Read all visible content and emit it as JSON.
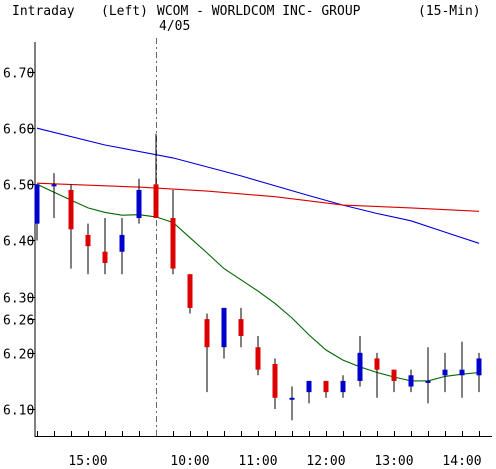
{
  "header": {
    "mode": "Intraday",
    "scale": "(Left)",
    "title": "WCOM - WORLDCOM INC- GROUP",
    "interval": "(15-Min)",
    "date_marker": "4/05"
  },
  "chart_data": {
    "type": "candlestick",
    "title": "WCOM - WORLDCOM INC- GROUP",
    "interval": "(15-Min)",
    "ylim": [
      6.065,
      6.8
    ],
    "y_ticks": [
      6.7,
      6.6,
      6.5,
      6.4,
      6.3,
      6.26,
      6.2,
      6.1
    ],
    "y_tick_labels": [
      "6.70",
      "6.60",
      "6.50",
      "6.40",
      "6.30",
      "6.26",
      "6.20",
      "6.10"
    ],
    "x_labels": [
      {
        "label": "15:00",
        "bar": 3
      },
      {
        "label": "10:00",
        "bar": 9
      },
      {
        "label": "11:00",
        "bar": 13
      },
      {
        "label": "12:00",
        "bar": 17
      },
      {
        "label": "13:00",
        "bar": 21
      },
      {
        "label": "14:00",
        "bar": 25
      }
    ],
    "session_divider_bar": 6.98,
    "date_label": "4/05",
    "candles": [
      {
        "o": 6.43,
        "h": 6.5,
        "l": 6.4,
        "c": 6.5
      },
      {
        "o": 6.5,
        "h": 6.52,
        "l": 6.44,
        "c": 6.5
      },
      {
        "o": 6.49,
        "h": 6.5,
        "l": 6.35,
        "c": 6.42
      },
      {
        "o": 6.41,
        "h": 6.43,
        "l": 6.34,
        "c": 6.39
      },
      {
        "o": 6.38,
        "h": 6.44,
        "l": 6.34,
        "c": 6.36
      },
      {
        "o": 6.38,
        "h": 6.44,
        "l": 6.34,
        "c": 6.41
      },
      {
        "o": 6.44,
        "h": 6.51,
        "l": 6.43,
        "c": 6.49
      },
      {
        "o": 6.5,
        "h": 6.59,
        "l": 6.44,
        "c": 6.44
      },
      {
        "o": 6.44,
        "h": 6.49,
        "l": 6.34,
        "c": 6.35
      },
      {
        "o": 6.34,
        "h": 6.34,
        "l": 6.27,
        "c": 6.28
      },
      {
        "o": 6.26,
        "h": 6.27,
        "l": 6.13,
        "c": 6.21
      },
      {
        "o": 6.21,
        "h": 6.28,
        "l": 6.19,
        "c": 6.28
      },
      {
        "o": 6.26,
        "h": 6.28,
        "l": 6.21,
        "c": 6.23
      },
      {
        "o": 6.21,
        "h": 6.23,
        "l": 6.16,
        "c": 6.17
      },
      {
        "o": 6.18,
        "h": 6.19,
        "l": 6.1,
        "c": 6.12
      },
      {
        "o": 6.12,
        "h": 6.14,
        "l": 6.08,
        "c": 6.12
      },
      {
        "o": 6.13,
        "h": 6.15,
        "l": 6.11,
        "c": 6.15
      },
      {
        "o": 6.15,
        "h": 6.15,
        "l": 6.12,
        "c": 6.13
      },
      {
        "o": 6.13,
        "h": 6.16,
        "l": 6.12,
        "c": 6.15
      },
      {
        "o": 6.15,
        "h": 6.23,
        "l": 6.14,
        "c": 6.2
      },
      {
        "o": 6.19,
        "h": 6.2,
        "l": 6.12,
        "c": 6.17
      },
      {
        "o": 6.17,
        "h": 6.17,
        "l": 6.13,
        "c": 6.15
      },
      {
        "o": 6.14,
        "h": 6.17,
        "l": 6.13,
        "c": 6.16
      },
      {
        "o": 6.15,
        "h": 6.21,
        "l": 6.11,
        "c": 6.15
      },
      {
        "o": 6.16,
        "h": 6.2,
        "l": 6.13,
        "c": 6.17
      },
      {
        "o": 6.16,
        "h": 6.22,
        "l": 6.12,
        "c": 6.17
      },
      {
        "o": 6.16,
        "h": 6.2,
        "l": 6.13,
        "c": 6.19
      }
    ],
    "up_color": "#0000cc",
    "down_color": "#dd0000",
    "series": [
      {
        "type": "line",
        "color": "#0000dd",
        "points": [
          [
            0,
            6.6
          ],
          [
            4,
            6.57
          ],
          [
            8,
            6.547
          ],
          [
            12,
            6.515
          ],
          [
            16,
            6.48
          ],
          [
            18,
            6.463
          ],
          [
            20,
            6.448
          ],
          [
            22,
            6.435
          ],
          [
            24,
            6.415
          ],
          [
            26,
            6.395
          ]
        ]
      },
      {
        "type": "line",
        "color": "#dd0000",
        "points": [
          [
            0,
            6.502
          ],
          [
            6,
            6.495
          ],
          [
            10,
            6.488
          ],
          [
            14,
            6.478
          ],
          [
            18,
            6.463
          ],
          [
            22,
            6.458
          ],
          [
            26,
            6.452
          ]
        ]
      },
      {
        "type": "line",
        "color": "#006600",
        "points": [
          [
            0,
            6.5
          ],
          [
            1,
            6.486
          ],
          [
            2,
            6.472
          ],
          [
            3,
            6.458
          ],
          [
            4,
            6.45
          ],
          [
            5,
            6.445
          ],
          [
            6,
            6.446
          ],
          [
            7,
            6.442
          ],
          [
            8,
            6.432
          ],
          [
            9,
            6.405
          ],
          [
            10,
            6.378
          ],
          [
            11,
            6.35
          ],
          [
            12,
            6.33
          ],
          [
            13,
            6.31
          ],
          [
            14,
            6.288
          ],
          [
            15,
            6.262
          ],
          [
            16,
            6.232
          ],
          [
            17,
            6.205
          ],
          [
            18,
            6.187
          ],
          [
            19,
            6.175
          ],
          [
            20,
            6.165
          ],
          [
            21,
            6.157
          ],
          [
            22,
            6.15
          ],
          [
            23,
            6.15
          ],
          [
            24,
            6.158
          ],
          [
            25,
            6.162
          ],
          [
            26,
            6.165
          ]
        ]
      }
    ],
    "grid": false,
    "legend": "none"
  }
}
